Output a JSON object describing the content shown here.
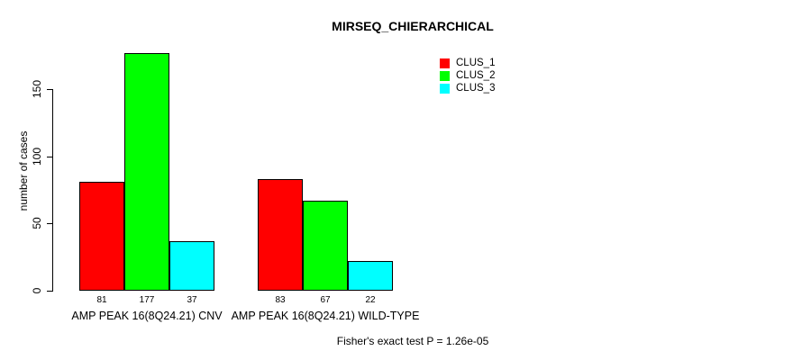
{
  "chart_data": {
    "type": "bar",
    "title": "MIRSEQ_CHIERARCHICAL",
    "ylabel": "number of cases",
    "xlabel": "",
    "categories": [
      "AMP PEAK 16(8Q24.21) CNV",
      "AMP PEAK 16(8Q24.21) WILD-TYPE"
    ],
    "series": [
      {
        "name": "CLUS_1",
        "color": "#ff0000",
        "values": [
          81,
          83
        ]
      },
      {
        "name": "CLUS_2",
        "color": "#00ff00",
        "values": [
          177,
          67
        ]
      },
      {
        "name": "CLUS_3",
        "color": "#00ffff",
        "values": [
          37,
          22
        ]
      }
    ],
    "bar_value_labels": [
      [
        81,
        177,
        37
      ],
      [
        83,
        67,
        22
      ]
    ],
    "yticks": [
      0,
      50,
      100,
      150
    ],
    "ylim": [
      0,
      185
    ],
    "grid": false,
    "legend_position": "top-right",
    "legend_entries": [
      "CLUS_1",
      "CLUS_2",
      "CLUS_3"
    ],
    "annotation": "Fisher's exact test P = 1.26e-05"
  },
  "colors": {
    "background": "#ffffff",
    "axis": "#000000",
    "text": "#000000",
    "clus_1": "#ff0000",
    "clus_2": "#00ff00",
    "clus_3": "#00ffff"
  }
}
